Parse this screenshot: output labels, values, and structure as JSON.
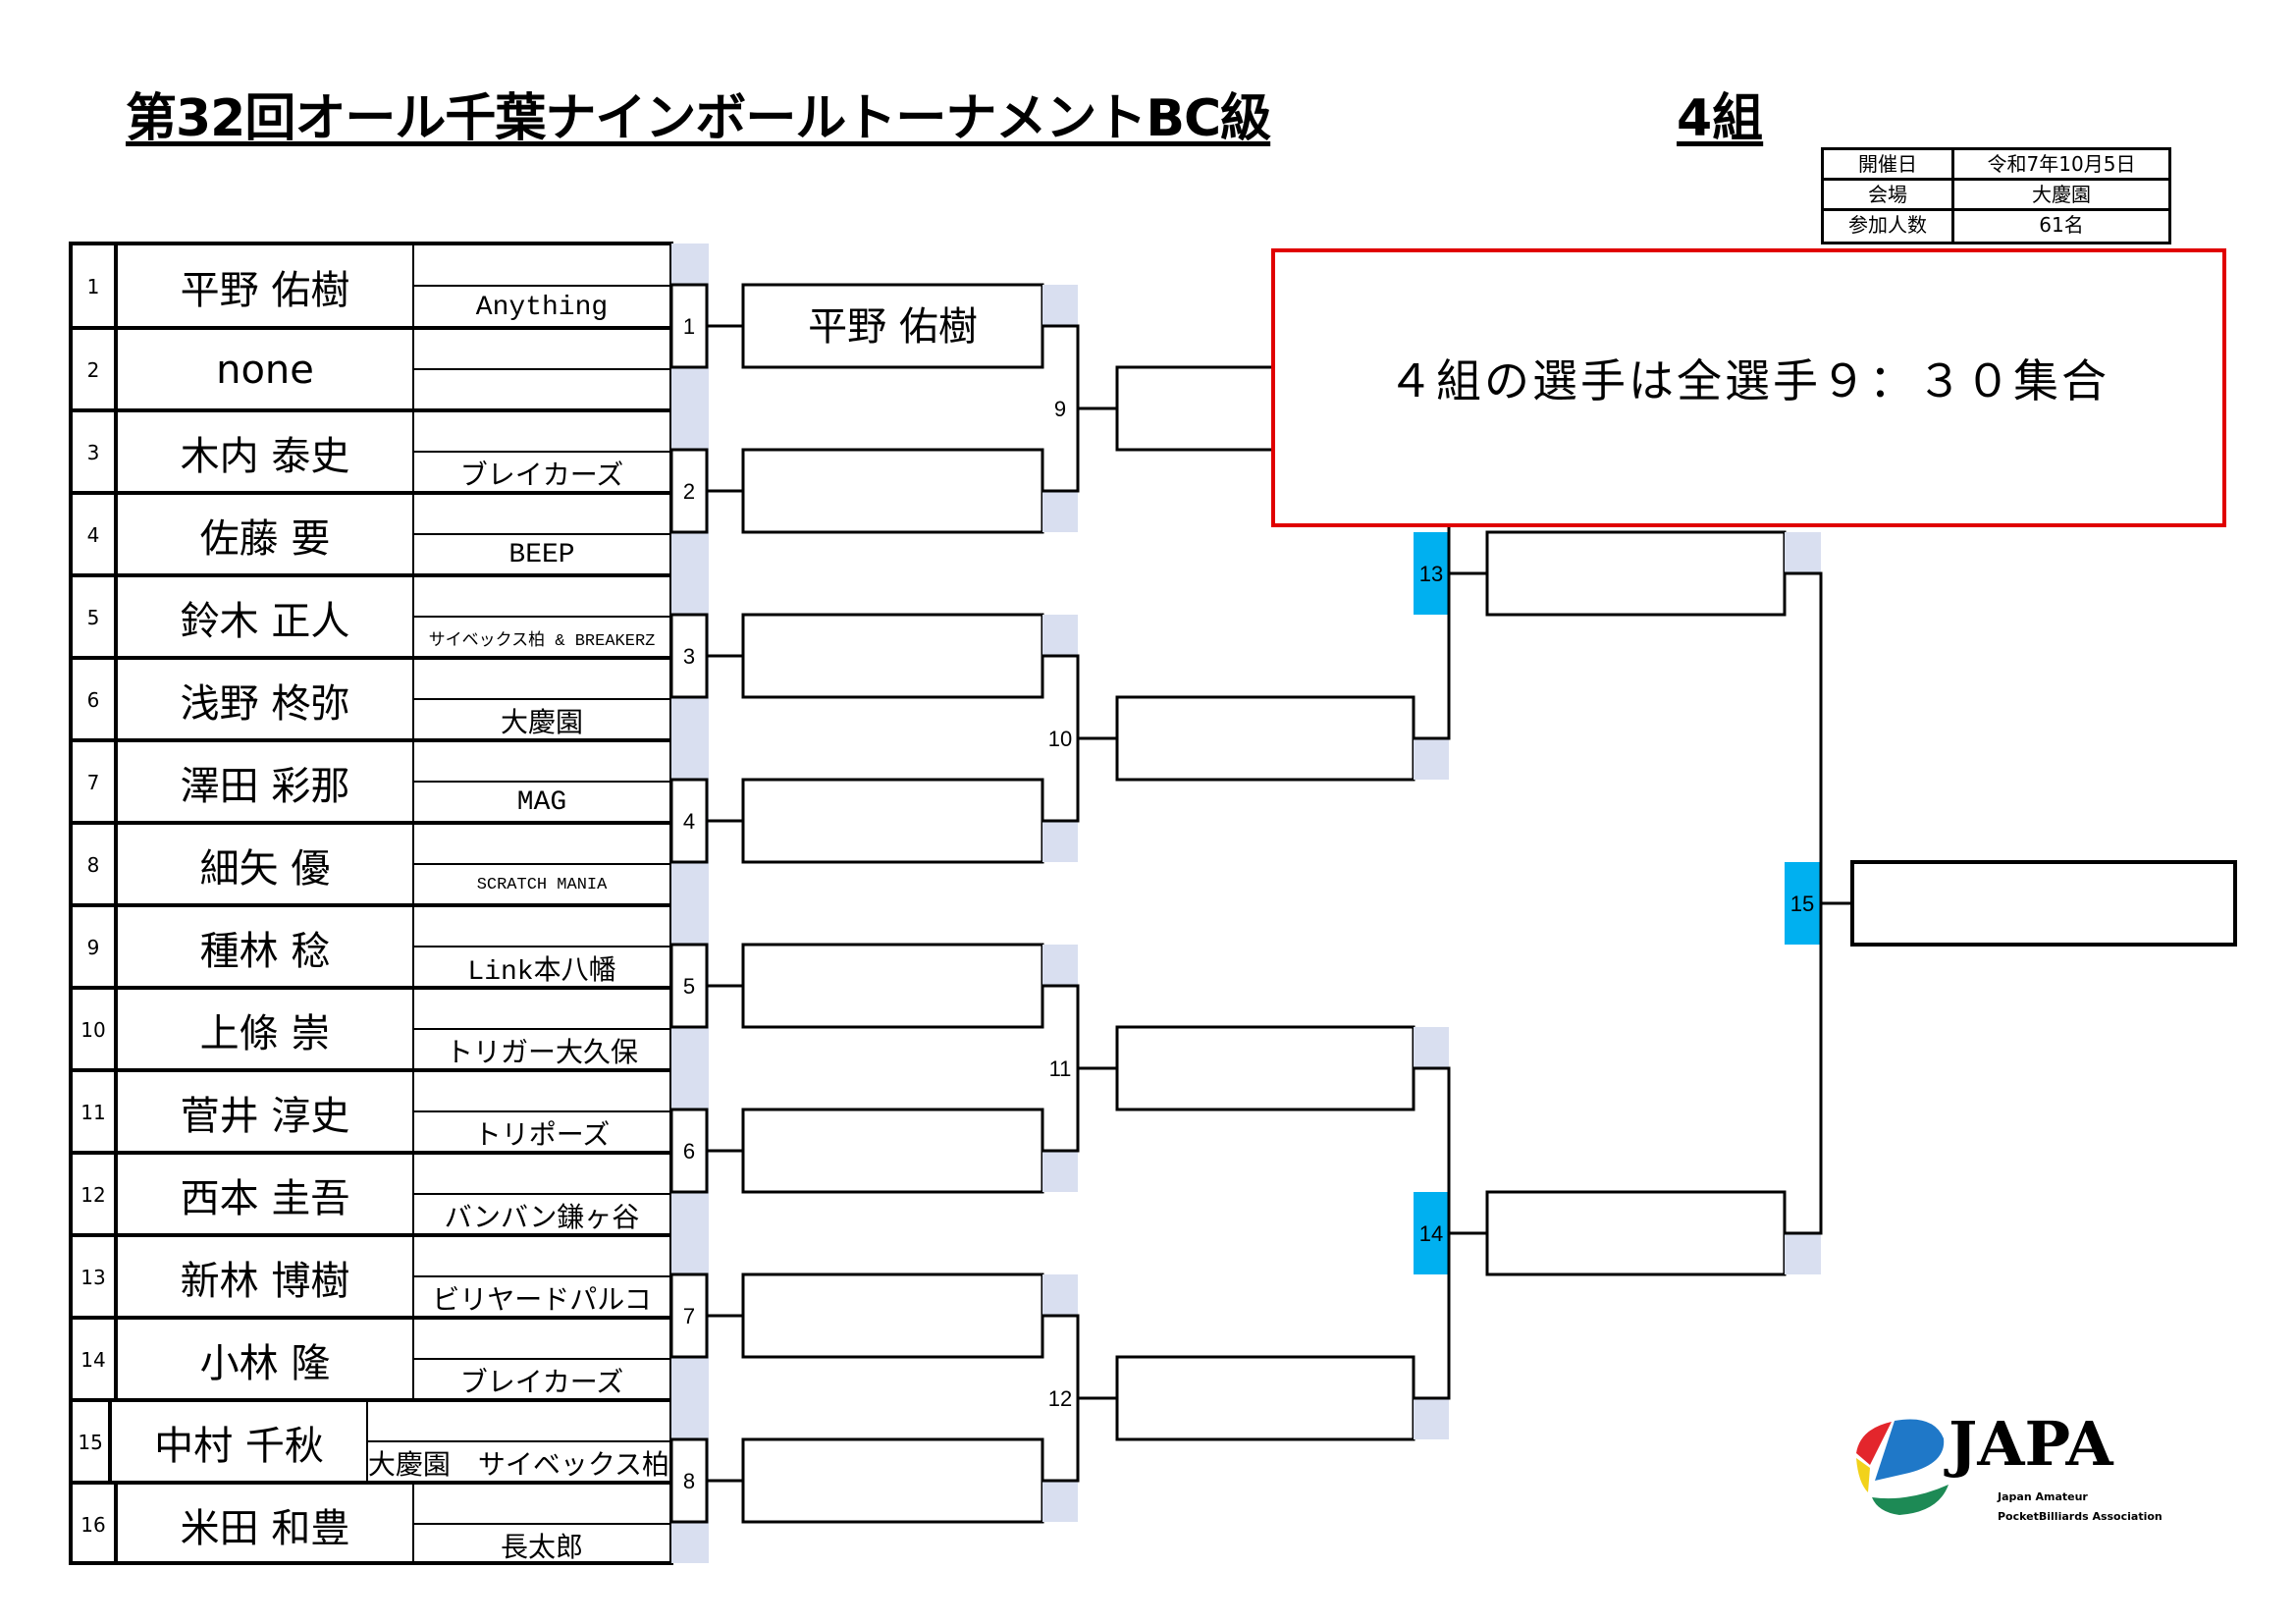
{
  "header": {
    "title": "第32回オール千葉ナインボールトーナメントBC級",
    "group": "4組"
  },
  "info": [
    {
      "label": "開催日",
      "value": "令和7年10月5日"
    },
    {
      "label": "会場",
      "value": "大慶園"
    },
    {
      "label": "参加人数",
      "value": "61名"
    }
  ],
  "players": [
    {
      "seed": "1",
      "name": "平野 佑樹",
      "team": "Anything"
    },
    {
      "seed": "2",
      "name": "none",
      "team": ""
    },
    {
      "seed": "3",
      "name": "木内 泰史",
      "team": "ブレイカーズ"
    },
    {
      "seed": "4",
      "name": "佐藤 要",
      "team": "BEEP"
    },
    {
      "seed": "5",
      "name": "鈴木 正人",
      "team": "サイベックス柏 & BREAKERZ"
    },
    {
      "seed": "6",
      "name": "浅野 柊弥",
      "team": "大慶園"
    },
    {
      "seed": "7",
      "name": "澤田 彩那",
      "team": "MAG"
    },
    {
      "seed": "8",
      "name": "細矢 優",
      "team": "SCRATCH MANIA"
    },
    {
      "seed": "9",
      "name": "種林 稔",
      "team": "Link本八幡"
    },
    {
      "seed": "10",
      "name": "上條 崇",
      "team": "トリガー大久保"
    },
    {
      "seed": "11",
      "name": "菅井 淳史",
      "team": "トリポーズ"
    },
    {
      "seed": "12",
      "name": "西本 圭吾",
      "team": "バンバン鎌ヶ谷"
    },
    {
      "seed": "13",
      "name": "新林 博樹",
      "team": "ビリヤードパルコ"
    },
    {
      "seed": "14",
      "name": "小林 隆",
      "team": "ブレイカーズ"
    },
    {
      "seed": "15",
      "name": "中村 千秋",
      "team": "大慶園　サイベックス柏"
    },
    {
      "seed": "16",
      "name": "米田 和豊",
      "team": "長太郎"
    }
  ],
  "bracket": {
    "round1_matches": [
      "1",
      "2",
      "3",
      "4",
      "5",
      "6",
      "7",
      "8"
    ],
    "round2_slots": [
      "平野 佑樹",
      "",
      "",
      "",
      "",
      "",
      "",
      ""
    ],
    "round2_matches": [
      "9",
      "10",
      "11",
      "12"
    ],
    "round3_slots": [
      "",
      "",
      "",
      ""
    ],
    "round3_matches": [
      "13",
      "14"
    ],
    "round4_slots": [
      "",
      ""
    ],
    "final_match": "15",
    "final_slot": ""
  },
  "notice": {
    "text": "４組の選手は全選手９：３０集合",
    "border_color": "#e00000"
  },
  "logo": {
    "name": "JAPA",
    "line1": "Japan Amateur",
    "line2": "PocketBilliards Association"
  },
  "colors": {
    "shade": "#d9dff0",
    "match_highlight": "#00b0f0"
  }
}
